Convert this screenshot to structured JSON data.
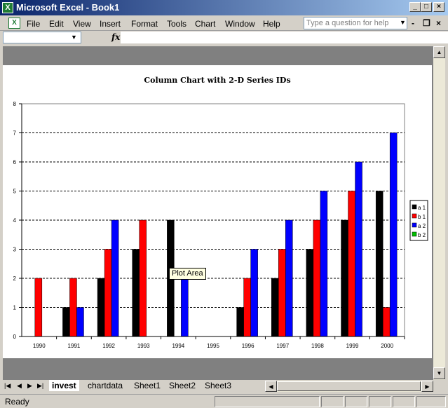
{
  "window": {
    "title": "Microsoft Excel - Book1",
    "app_icon": "excel-icon"
  },
  "menu": {
    "items": [
      "File",
      "Edit",
      "View",
      "Insert",
      "Format",
      "Tools",
      "Chart",
      "Window",
      "Help"
    ],
    "help_placeholder": "Type a question for help"
  },
  "formula_bar": {
    "fx_label": "fx"
  },
  "chart_data": {
    "type": "bar",
    "title": "Column Chart with 2-D Series IDs",
    "categories": [
      "1990",
      "1991",
      "1992",
      "1993",
      "1994",
      "1995",
      "1996",
      "1997",
      "1998",
      "1999",
      "2000"
    ],
    "series": [
      {
        "name": "a 1",
        "color": "#000000",
        "values": [
          0,
          1,
          2,
          3,
          4,
          0,
          1,
          2,
          3,
          4,
          5
        ]
      },
      {
        "name": "b 1",
        "color": "#ff0000",
        "values": [
          2,
          2,
          3,
          4,
          0,
          0,
          2,
          3,
          4,
          5,
          1
        ]
      },
      {
        "name": "a 2",
        "color": "#0000ff",
        "values": [
          0,
          1,
          4,
          0,
          2,
          0,
          3,
          4,
          5,
          6,
          7
        ]
      },
      {
        "name": "b 2",
        "color": "#00c000",
        "values": [
          0,
          0,
          0,
          0,
          0,
          0,
          0,
          0,
          0,
          0,
          0
        ]
      }
    ],
    "ylim": [
      0,
      8
    ],
    "yticks": [
      "0",
      "1",
      "2",
      "3",
      "4",
      "5",
      "6",
      "7",
      "8"
    ],
    "grid": true,
    "legend": "right"
  },
  "tooltip": {
    "text": "Plot Area"
  },
  "sheets": {
    "tabs": [
      "invest",
      "chartdata",
      "Sheet1",
      "Sheet2",
      "Sheet3"
    ],
    "active": "invest"
  },
  "status": {
    "text": "Ready"
  }
}
